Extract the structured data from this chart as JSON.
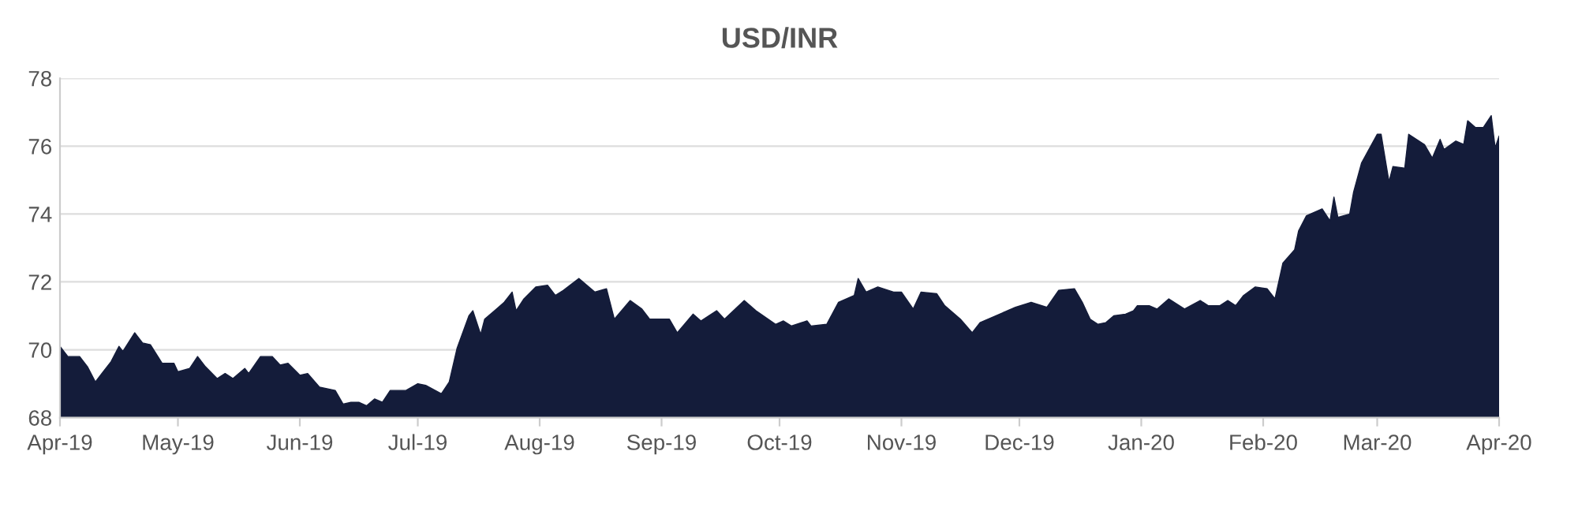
{
  "chart_data": {
    "type": "area",
    "title": "USD/INR",
    "x": [
      "2019-04-01",
      "2019-04-03",
      "2019-04-06",
      "2019-04-08",
      "2019-04-10",
      "2019-04-12",
      "2019-04-14",
      "2019-04-16",
      "2019-04-17",
      "2019-04-20",
      "2019-04-22",
      "2019-04-24",
      "2019-04-27",
      "2019-04-30",
      "2019-05-01",
      "2019-05-04",
      "2019-05-06",
      "2019-05-08",
      "2019-05-11",
      "2019-05-13",
      "2019-05-15",
      "2019-05-18",
      "2019-05-19",
      "2019-05-22",
      "2019-05-25",
      "2019-05-27",
      "2019-05-29",
      "2019-06-01",
      "2019-06-03",
      "2019-06-06",
      "2019-06-10",
      "2019-06-12",
      "2019-06-14",
      "2019-06-16",
      "2019-06-18",
      "2019-06-20",
      "2019-06-22",
      "2019-06-24",
      "2019-06-28",
      "2019-07-01",
      "2019-07-03",
      "2019-07-07",
      "2019-07-09",
      "2019-07-11",
      "2019-07-14",
      "2019-07-15",
      "2019-07-17",
      "2019-07-18",
      "2019-07-21",
      "2019-07-23",
      "2019-07-25",
      "2019-07-26",
      "2019-07-28",
      "2019-07-31",
      "2019-08-03",
      "2019-08-05",
      "2019-08-07",
      "2019-08-11",
      "2019-08-13",
      "2019-08-15",
      "2019-08-18",
      "2019-08-20",
      "2019-08-24",
      "2019-08-27",
      "2019-08-29",
      "2019-09-03",
      "2019-09-05",
      "2019-09-09",
      "2019-09-11",
      "2019-09-15",
      "2019-09-17",
      "2019-09-22",
      "2019-09-25",
      "2019-09-30",
      "2019-10-02",
      "2019-10-04",
      "2019-10-08",
      "2019-10-09",
      "2019-10-13",
      "2019-10-16",
      "2019-10-20",
      "2019-10-21",
      "2019-10-23",
      "2019-10-26",
      "2019-10-30",
      "2019-11-01",
      "2019-11-04",
      "2019-11-06",
      "2019-11-10",
      "2019-11-12",
      "2019-11-16",
      "2019-11-19",
      "2019-11-21",
      "2019-11-26",
      "2019-11-30",
      "2019-12-04",
      "2019-12-08",
      "2019-12-11",
      "2019-12-15",
      "2019-12-17",
      "2019-12-19",
      "2019-12-21",
      "2019-12-23",
      "2019-12-25",
      "2019-12-28",
      "2019-12-30",
      "2019-12-31",
      "2020-01-03",
      "2020-01-05",
      "2020-01-08",
      "2020-01-12",
      "2020-01-16",
      "2020-01-18",
      "2020-01-21",
      "2020-01-23",
      "2020-01-25",
      "2020-01-27",
      "2020-01-30",
      "2020-02-02",
      "2020-02-04",
      "2020-02-06",
      "2020-02-09",
      "2020-02-10",
      "2020-02-12",
      "2020-02-16",
      "2020-02-18",
      "2020-02-19",
      "2020-02-20",
      "2020-02-23",
      "2020-02-24",
      "2020-02-26",
      "2020-03-01",
      "2020-03-02",
      "2020-03-04",
      "2020-03-05",
      "2020-03-08",
      "2020-03-09",
      "2020-03-13",
      "2020-03-15",
      "2020-03-17",
      "2020-03-18",
      "2020-03-21",
      "2020-03-23",
      "2020-03-24",
      "2020-03-26",
      "2020-03-28",
      "2020-03-30",
      "2020-03-31",
      "2020-04-01"
    ],
    "series": [
      {
        "color": "#141c3a",
        "values": [
          70.1,
          69.8,
          69.8,
          69.5,
          69.05,
          69.35,
          69.65,
          70.1,
          69.95,
          70.5,
          70.2,
          70.15,
          69.6,
          69.6,
          69.35,
          69.45,
          69.8,
          69.5,
          69.15,
          69.3,
          69.15,
          69.45,
          69.3,
          69.8,
          69.8,
          69.55,
          69.6,
          69.25,
          69.3,
          68.9,
          68.8,
          68.4,
          68.45,
          68.45,
          68.35,
          68.55,
          68.45,
          68.8,
          68.8,
          69.0,
          68.95,
          68.7,
          69.05,
          70.05,
          71.0,
          71.15,
          70.45,
          70.9,
          71.2,
          71.4,
          71.7,
          71.15,
          71.5,
          71.85,
          71.9,
          71.6,
          71.75,
          72.1,
          71.9,
          71.7,
          71.8,
          70.9,
          71.45,
          71.2,
          70.9,
          70.9,
          70.5,
          71.05,
          70.85,
          71.15,
          70.9,
          71.45,
          71.15,
          70.75,
          70.85,
          70.7,
          70.85,
          70.7,
          70.75,
          71.4,
          71.6,
          72.1,
          71.7,
          71.85,
          71.7,
          71.7,
          71.2,
          71.7,
          71.65,
          71.3,
          70.9,
          70.5,
          70.8,
          71.05,
          71.25,
          71.4,
          71.25,
          71.75,
          71.8,
          71.4,
          70.9,
          70.75,
          70.8,
          71.0,
          71.05,
          71.15,
          71.3,
          71.3,
          71.2,
          71.5,
          71.2,
          71.45,
          71.3,
          71.3,
          71.45,
          71.3,
          71.6,
          71.85,
          71.8,
          71.5,
          72.55,
          72.95,
          73.5,
          73.95,
          74.15,
          73.8,
          74.5,
          73.9,
          74.0,
          74.65,
          75.5,
          76.35,
          76.35,
          74.95,
          75.4,
          75.35,
          76.35,
          76.05,
          75.65,
          76.2,
          75.9,
          76.15,
          76.05,
          76.75,
          76.55,
          76.55,
          76.9,
          75.95,
          76.3
        ]
      }
    ],
    "xlim": [
      "2019-04-01",
      "2020-04-01"
    ],
    "xticks": [
      {
        "value": "2019-04-01",
        "label": "Apr-19"
      },
      {
        "value": "2019-05-01",
        "label": "May-19"
      },
      {
        "value": "2019-06-01",
        "label": "Jun-19"
      },
      {
        "value": "2019-07-01",
        "label": "Jul-19"
      },
      {
        "value": "2019-08-01",
        "label": "Aug-19"
      },
      {
        "value": "2019-09-01",
        "label": "Sep-19"
      },
      {
        "value": "2019-10-01",
        "label": "Oct-19"
      },
      {
        "value": "2019-11-01",
        "label": "Nov-19"
      },
      {
        "value": "2019-12-01",
        "label": "Dec-19"
      },
      {
        "value": "2020-01-01",
        "label": "Jan-20"
      },
      {
        "value": "2020-02-01",
        "label": "Feb-20"
      },
      {
        "value": "2020-03-01",
        "label": "Mar-20"
      },
      {
        "value": "2020-04-01",
        "label": "Apr-20"
      }
    ],
    "ylim": [
      68,
      78
    ],
    "yticks": [
      68,
      70,
      72,
      74,
      76,
      78
    ],
    "grid": "y"
  }
}
